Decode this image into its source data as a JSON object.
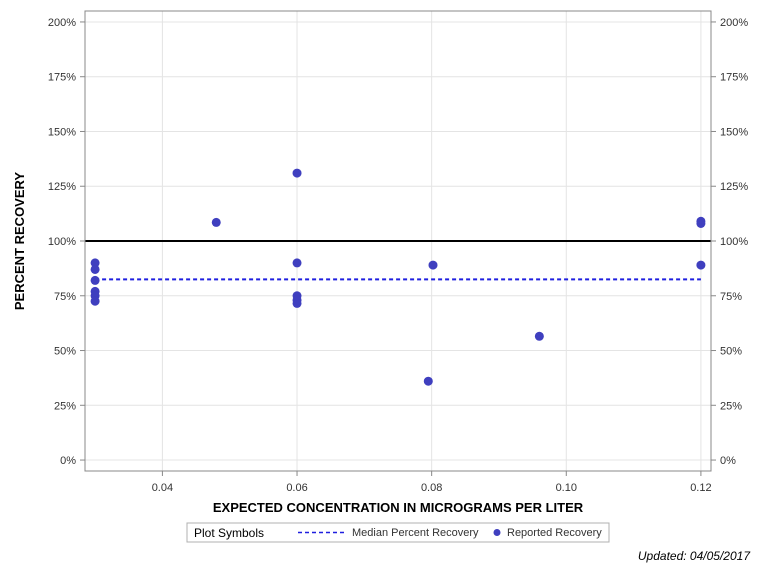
{
  "chart_data": {
    "type": "scatter",
    "xlabel": "EXPECTED CONCENTRATION IN MICROGRAMS PER LITER",
    "ylabel": "PERCENT RECOVERY",
    "xlim": [
      0.0285,
      0.1215
    ],
    "ylim": [
      -5,
      205
    ],
    "x_ticks": [
      0.04,
      0.06,
      0.08,
      0.1,
      0.12
    ],
    "x_tick_labels": [
      "0.04",
      "0.06",
      "0.08",
      "0.10",
      "0.12"
    ],
    "y_ticks": [
      0,
      25,
      50,
      75,
      100,
      125,
      150,
      175,
      200
    ],
    "y_tick_labels": [
      "0%",
      "25%",
      "50%",
      "75%",
      "100%",
      "125%",
      "150%",
      "175%",
      "200%"
    ],
    "grid": true,
    "reference_line": 100,
    "series": [
      {
        "name": "Reported Recovery",
        "style": "markers",
        "color": "#3f3fbf",
        "points": [
          [
            0.03,
            90
          ],
          [
            0.03,
            87
          ],
          [
            0.03,
            82
          ],
          [
            0.03,
            77
          ],
          [
            0.03,
            75
          ],
          [
            0.03,
            72.5
          ],
          [
            0.048,
            108.5
          ],
          [
            0.06,
            131
          ],
          [
            0.06,
            90
          ],
          [
            0.06,
            75
          ],
          [
            0.06,
            73
          ],
          [
            0.06,
            71.5
          ],
          [
            0.0795,
            36
          ],
          [
            0.0802,
            89
          ],
          [
            0.096,
            56.5
          ],
          [
            0.12,
            109
          ],
          [
            0.12,
            108
          ],
          [
            0.12,
            89
          ]
        ]
      },
      {
        "name": "Median Percent Recovery",
        "style": "dashed-line",
        "color": "#1f1fdf",
        "points": [
          [
            0.03,
            82.5
          ],
          [
            0.12,
            82.5
          ]
        ]
      }
    ],
    "legend": {
      "title": "Plot Symbols",
      "placement": "bottom",
      "entries": [
        "Median Percent Recovery",
        "Reported Recovery"
      ]
    }
  },
  "footer": {
    "updated": "Updated: 04/05/2017"
  }
}
